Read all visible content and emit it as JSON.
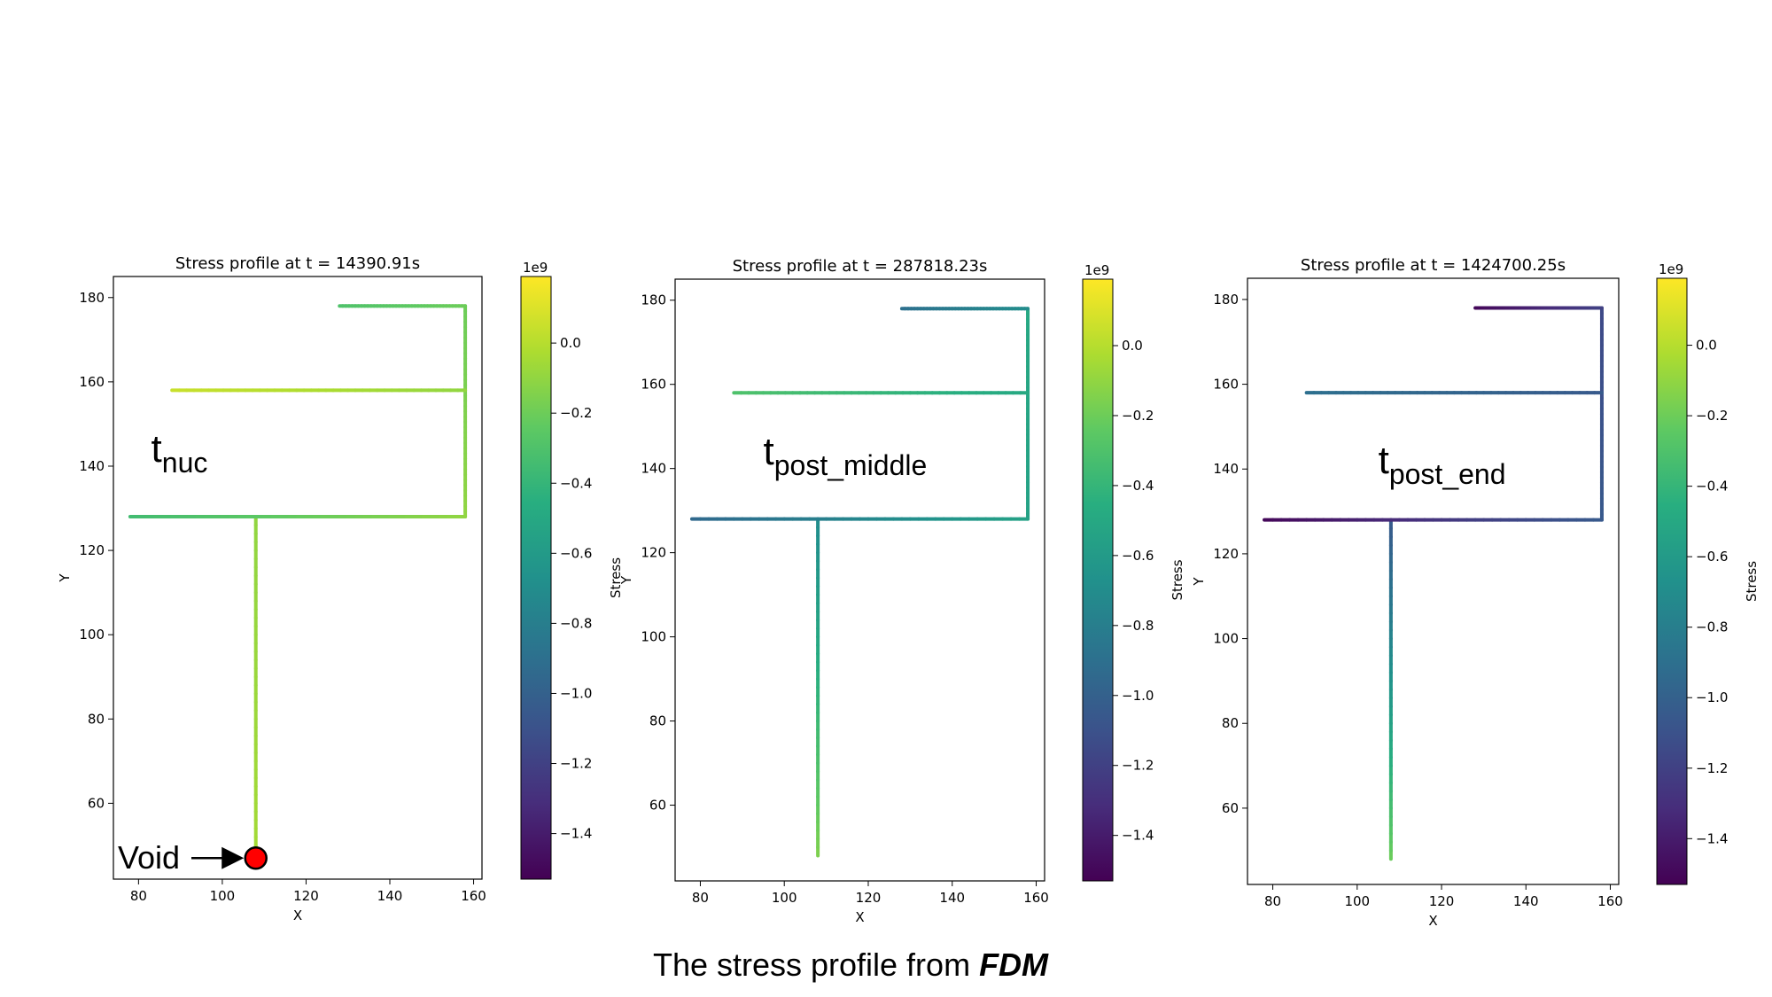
{
  "caption": {
    "text": "The stress profile from ",
    "emphasis": "FDM"
  },
  "chart_data": [
    {
      "type": "line",
      "title": "Stress profile at t = 14390.91s",
      "xlabel": "X",
      "ylabel": "Y",
      "xlim": [
        74,
        162
      ],
      "ylim": [
        42,
        185
      ],
      "xticks": [
        "80",
        "100",
        "120",
        "140",
        "160"
      ],
      "yticks": [
        "60",
        "80",
        "100",
        "120",
        "140",
        "160",
        "180"
      ],
      "label": {
        "main": "t",
        "sub": "nuc",
        "x": 83,
        "y": 141
      },
      "void": {
        "text": "Void",
        "x": 108,
        "y": 47
      },
      "colorbar": {
        "label": "Stress",
        "exponent": "1e9",
        "min": -1.53,
        "max": 0.19,
        "ticks": [
          "0.0",
          "−0.2",
          "−0.4",
          "−0.6",
          "−0.8",
          "−1.0",
          "−1.2",
          "−1.4"
        ]
      },
      "segments": [
        {
          "name": "stem",
          "x": [
            108,
            108
          ],
          "y": [
            48,
            128
          ],
          "stress": [
            -0.05,
            -0.1
          ]
        },
        {
          "name": "bottom-branch",
          "x": [
            78,
            158
          ],
          "y": [
            128,
            128
          ],
          "stress": [
            -0.35,
            -0.1
          ]
        },
        {
          "name": "right-spine",
          "x": [
            158,
            158
          ],
          "y": [
            128,
            178
          ],
          "stress": [
            -0.1,
            -0.2
          ]
        },
        {
          "name": "middle-branch",
          "x": [
            88,
            158
          ],
          "y": [
            158,
            158
          ],
          "stress": [
            0.05,
            -0.1
          ]
        },
        {
          "name": "top-branch",
          "x": [
            128,
            158
          ],
          "y": [
            178,
            178
          ],
          "stress": [
            -0.3,
            -0.2
          ]
        }
      ]
    },
    {
      "type": "line",
      "title": "Stress profile at t = 287818.23s",
      "xlabel": "X",
      "ylabel": "Y",
      "xlim": [
        74,
        162
      ],
      "ylim": [
        42,
        185
      ],
      "xticks": [
        "80",
        "100",
        "120",
        "140",
        "160"
      ],
      "yticks": [
        "60",
        "80",
        "100",
        "120",
        "140",
        "160",
        "180"
      ],
      "label": {
        "main": "t",
        "sub": "post_middle",
        "x": 95,
        "y": 141
      },
      "colorbar": {
        "label": "Stress",
        "exponent": "1e9",
        "min": -1.53,
        "max": 0.19,
        "ticks": [
          "0.0",
          "−0.2",
          "−0.4",
          "−0.6",
          "−0.8",
          "−1.0",
          "−1.2",
          "−1.4"
        ]
      },
      "segments": [
        {
          "name": "stem",
          "x": [
            108,
            108
          ],
          "y": [
            48,
            128
          ],
          "stress": [
            -0.15,
            -0.7
          ]
        },
        {
          "name": "bottom-branch",
          "x": [
            78,
            158
          ],
          "y": [
            128,
            128
          ],
          "stress": [
            -0.95,
            -0.55
          ]
        },
        {
          "name": "right-spine",
          "x": [
            158,
            158
          ],
          "y": [
            128,
            178
          ],
          "stress": [
            -0.55,
            -0.5
          ]
        },
        {
          "name": "middle-branch",
          "x": [
            88,
            158
          ],
          "y": [
            158,
            158
          ],
          "stress": [
            -0.3,
            -0.5
          ]
        },
        {
          "name": "top-branch",
          "x": [
            128,
            158
          ],
          "y": [
            178,
            178
          ],
          "stress": [
            -0.9,
            -0.7
          ]
        }
      ]
    },
    {
      "type": "line",
      "title": "Stress profile at t = 1424700.25s",
      "xlabel": "X",
      "ylabel": "Y",
      "xlim": [
        74,
        162
      ],
      "ylim": [
        42,
        185
      ],
      "xticks": [
        "80",
        "100",
        "120",
        "140",
        "160"
      ],
      "yticks": [
        "60",
        "80",
        "100",
        "120",
        "140",
        "160",
        "180"
      ],
      "label": {
        "main": "t",
        "sub": "post_end",
        "x": 105,
        "y": 139
      },
      "colorbar": {
        "label": "Stress",
        "exponent": "1e9",
        "min": -1.53,
        "max": 0.19,
        "ticks": [
          "0.0",
          "−0.2",
          "−0.4",
          "−0.6",
          "−0.8",
          "−1.0",
          "−1.2",
          "−1.4"
        ]
      },
      "segments": [
        {
          "name": "stem",
          "x": [
            108,
            108
          ],
          "y": [
            48,
            128
          ],
          "stress": [
            -0.2,
            -1.05
          ]
        },
        {
          "name": "bottom-branch",
          "x": [
            78,
            158
          ],
          "y": [
            128,
            128
          ],
          "stress": [
            -1.5,
            -1.05
          ]
        },
        {
          "name": "right-spine",
          "x": [
            158,
            158
          ],
          "y": [
            128,
            178
          ],
          "stress": [
            -1.05,
            -1.15
          ]
        },
        {
          "name": "middle-branch",
          "x": [
            88,
            158
          ],
          "y": [
            158,
            158
          ],
          "stress": [
            -0.9,
            -1.05
          ]
        },
        {
          "name": "top-branch",
          "x": [
            128,
            158
          ],
          "y": [
            178,
            178
          ],
          "stress": [
            -1.5,
            -1.2
          ]
        }
      ]
    }
  ]
}
